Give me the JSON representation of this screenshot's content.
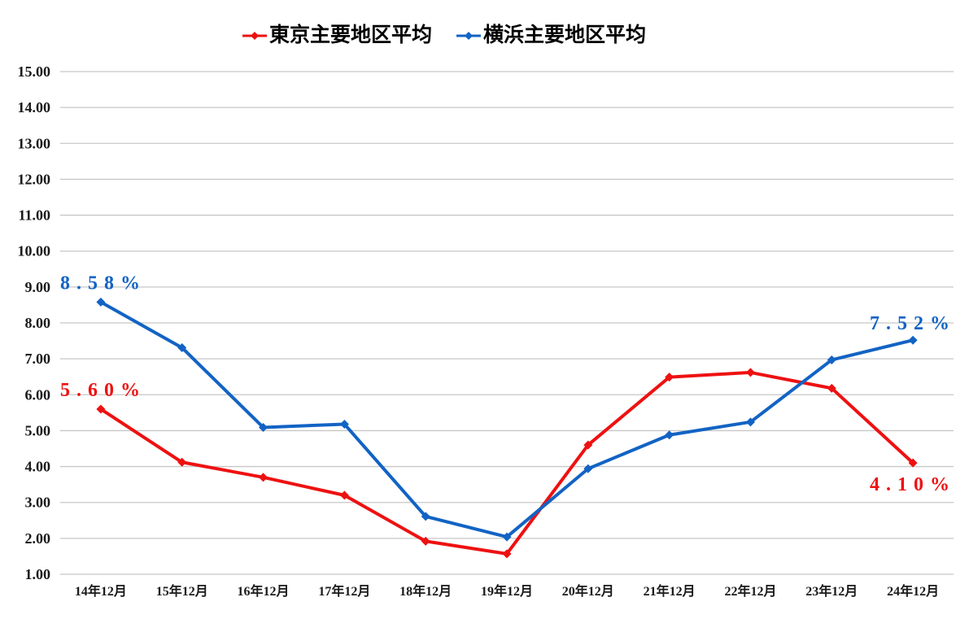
{
  "chart_data": {
    "type": "line",
    "title": "",
    "xlabel": "",
    "ylabel": "",
    "ylim": [
      1,
      15
    ],
    "ytick_step": 1,
    "ytick_format": "two-decimals",
    "grid": true,
    "gridline_color": "#c7c7c7",
    "legend_position": "top",
    "categories": [
      "14年12月",
      "15年12月",
      "16年12月",
      "17年12月",
      "18年12月",
      "19年12月",
      "20年12月",
      "21年12月",
      "22年12月",
      "23年12月",
      "24年12月"
    ],
    "series": [
      {
        "name": "東京主要地区平均",
        "color": "#ee1111",
        "marker": "diamond",
        "values": [
          5.6,
          4.12,
          3.7,
          3.2,
          1.92,
          1.57,
          4.6,
          6.49,
          6.62,
          6.18,
          4.1
        ]
      },
      {
        "name": "横浜主要地区平均",
        "color": "#1263c4",
        "marker": "diamond",
        "values": [
          8.58,
          7.31,
          5.09,
          5.18,
          2.61,
          2.04,
          3.94,
          4.88,
          5.24,
          6.97,
          7.52
        ]
      }
    ],
    "annotations": [
      {
        "series": 1,
        "point": 0,
        "text": "8.58%",
        "position": "above-start"
      },
      {
        "series": 0,
        "point": 0,
        "text": "5.60%",
        "position": "above-start"
      },
      {
        "series": 1,
        "point": 10,
        "text": "7.52%",
        "position": "above-end"
      },
      {
        "series": 0,
        "point": 10,
        "text": "4.10%",
        "position": "below-end"
      }
    ]
  }
}
